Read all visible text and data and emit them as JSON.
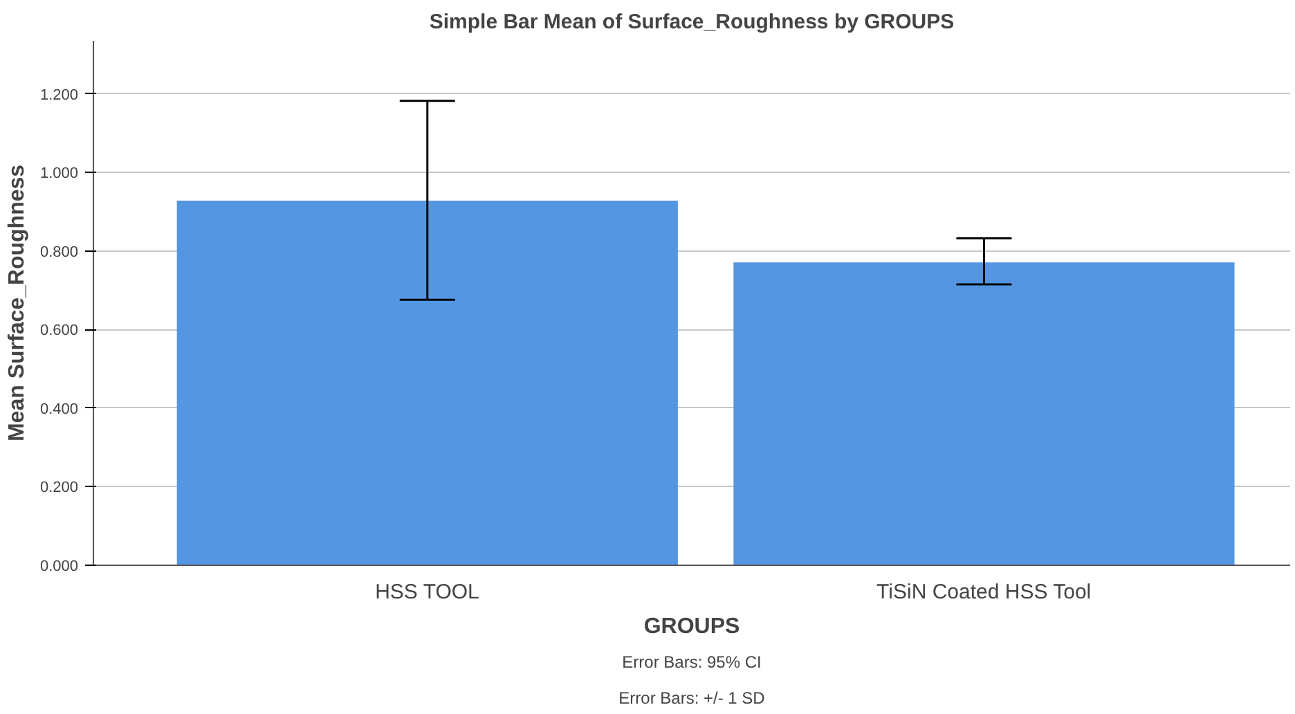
{
  "chart_data": {
    "type": "bar",
    "title": "Simple Bar Mean of Surface_Roughness by GROUPS",
    "xlabel": "GROUPS",
    "ylabel": "Mean Surface_Roughness",
    "categories": [
      "HSS TOOL",
      "TiSiN Coated HSS Tool"
    ],
    "values": [
      0.928,
      0.771
    ],
    "errors": [
      [
        0.676,
        1.182
      ],
      [
        0.715,
        0.832
      ]
    ],
    "color": "#5596e3",
    "ylim": [
      0,
      1.335
    ],
    "yticks": [
      {
        "value": 0,
        "label": "0.000"
      },
      {
        "value": 0.2,
        "label": "0.200"
      },
      {
        "value": 0.4,
        "label": "0.400"
      },
      {
        "value": 0.6,
        "label": "0.600"
      },
      {
        "value": 0.8,
        "label": "0.800"
      },
      {
        "value": 1.0,
        "label": "1.000"
      },
      {
        "value": 1.2,
        "label": "1.200"
      }
    ],
    "grid": "y",
    "annotations": [
      "Error Bars: 95% CI",
      "Error Bars: +/- 1 SD"
    ]
  }
}
